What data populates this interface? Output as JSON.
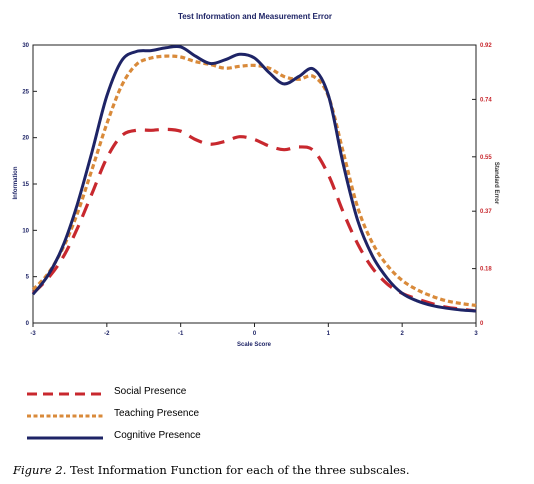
{
  "chart_data": {
    "type": "line",
    "title": "Test Information and Measurement Error",
    "xlabel": "Scale Score",
    "ylabel": "Information",
    "y2label": "Standard Error",
    "xlim": [
      -3,
      3
    ],
    "ylim": [
      0,
      30
    ],
    "y2lim": [
      0,
      0.92
    ],
    "xticks": [
      "-3",
      "-2",
      "-1",
      "0",
      "1",
      "2",
      "3"
    ],
    "yticks": [
      "0",
      "5",
      "10",
      "15",
      "20",
      "25",
      "30"
    ],
    "y2ticks": [
      "0",
      "0.18",
      "0.37",
      "0.55",
      "0.74",
      "0.92"
    ],
    "grid": false,
    "legend_position": "bottom-left",
    "x": [
      -3.0,
      -2.8,
      -2.6,
      -2.4,
      -2.2,
      -2.0,
      -1.8,
      -1.6,
      -1.4,
      -1.2,
      -1.0,
      -0.8,
      -0.6,
      -0.4,
      -0.2,
      0.0,
      0.2,
      0.4,
      0.6,
      0.8,
      1.0,
      1.2,
      1.4,
      1.6,
      1.8,
      2.0,
      2.2,
      2.4,
      2.6,
      2.8,
      3.0
    ],
    "series": [
      {
        "name": "Social Presence",
        "color": "#c8282e",
        "dash": "dashed",
        "values": [
          3.2,
          4.8,
          7.0,
          10.2,
          14.0,
          17.8,
          20.2,
          20.8,
          20.8,
          20.9,
          20.7,
          19.8,
          19.3,
          19.6,
          20.1,
          19.8,
          19.1,
          18.7,
          19.0,
          18.6,
          16.0,
          12.0,
          8.5,
          5.9,
          4.2,
          3.2,
          2.6,
          2.1,
          1.7,
          1.5,
          1.3
        ]
      },
      {
        "name": "Teaching Presence",
        "color": "#d98a3a",
        "dash": "dotted",
        "values": [
          3.6,
          5.3,
          8.0,
          11.8,
          16.6,
          21.5,
          25.6,
          27.9,
          28.6,
          28.8,
          28.7,
          28.2,
          27.9,
          27.5,
          27.7,
          27.8,
          27.5,
          26.6,
          26.3,
          26.6,
          24.5,
          18.5,
          12.4,
          8.6,
          6.2,
          4.6,
          3.6,
          2.9,
          2.4,
          2.1,
          1.9
        ]
      },
      {
        "name": "Cognitive Presence",
        "color": "#1e2466",
        "dash": "solid",
        "values": [
          3.1,
          5.1,
          8.2,
          12.8,
          18.5,
          24.5,
          28.3,
          29.3,
          29.4,
          29.7,
          29.8,
          28.8,
          28.0,
          28.4,
          29.0,
          28.6,
          27.0,
          25.8,
          26.6,
          27.4,
          24.6,
          17.2,
          11.0,
          7.2,
          4.8,
          3.2,
          2.4,
          1.9,
          1.6,
          1.4,
          1.3
        ]
      }
    ]
  },
  "caption": {
    "figure_label": "Figure 2.",
    "text": "Test Information Function for each of the three subscales."
  }
}
